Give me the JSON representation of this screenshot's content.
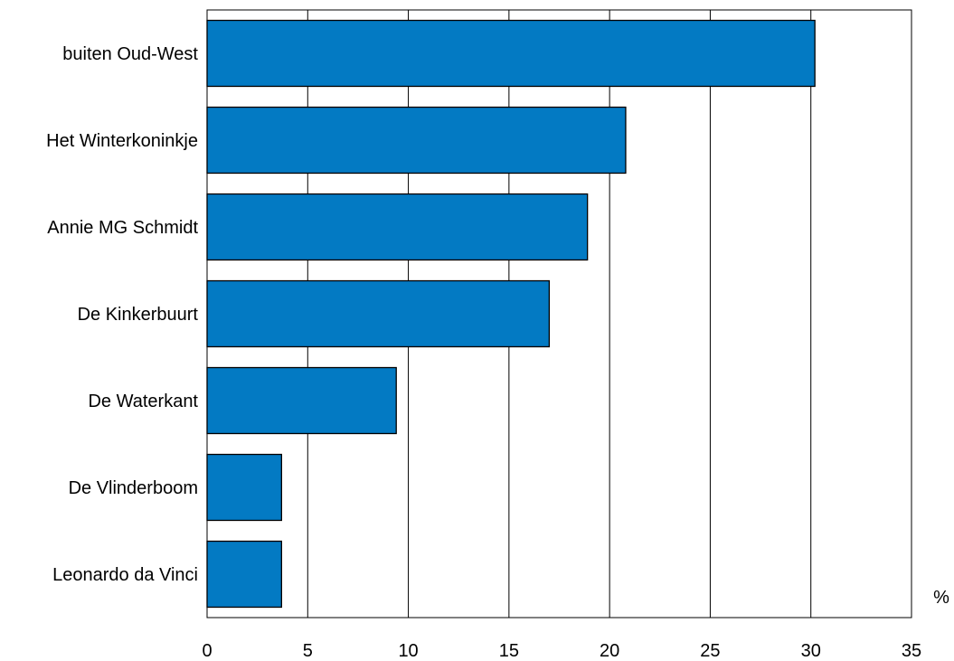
{
  "chart_data": {
    "type": "bar",
    "orientation": "horizontal",
    "categories": [
      "buiten Oud-West",
      "Het Winterkoninkje",
      "Annie MG Schmidt",
      "De Kinkerbuurt",
      "De Waterkant",
      "De Vlinderboom",
      "Leonardo da Vinci"
    ],
    "values": [
      30.2,
      20.8,
      18.9,
      17.0,
      9.4,
      3.7,
      3.7
    ],
    "xlim": [
      0,
      35
    ],
    "xticks": [
      "0",
      "5",
      "10",
      "15",
      "20",
      "25",
      "30",
      "35"
    ],
    "unit_label": "%",
    "grid": "vertical",
    "bar_color": "#037ac3",
    "bar_edge_color": "#000000"
  }
}
